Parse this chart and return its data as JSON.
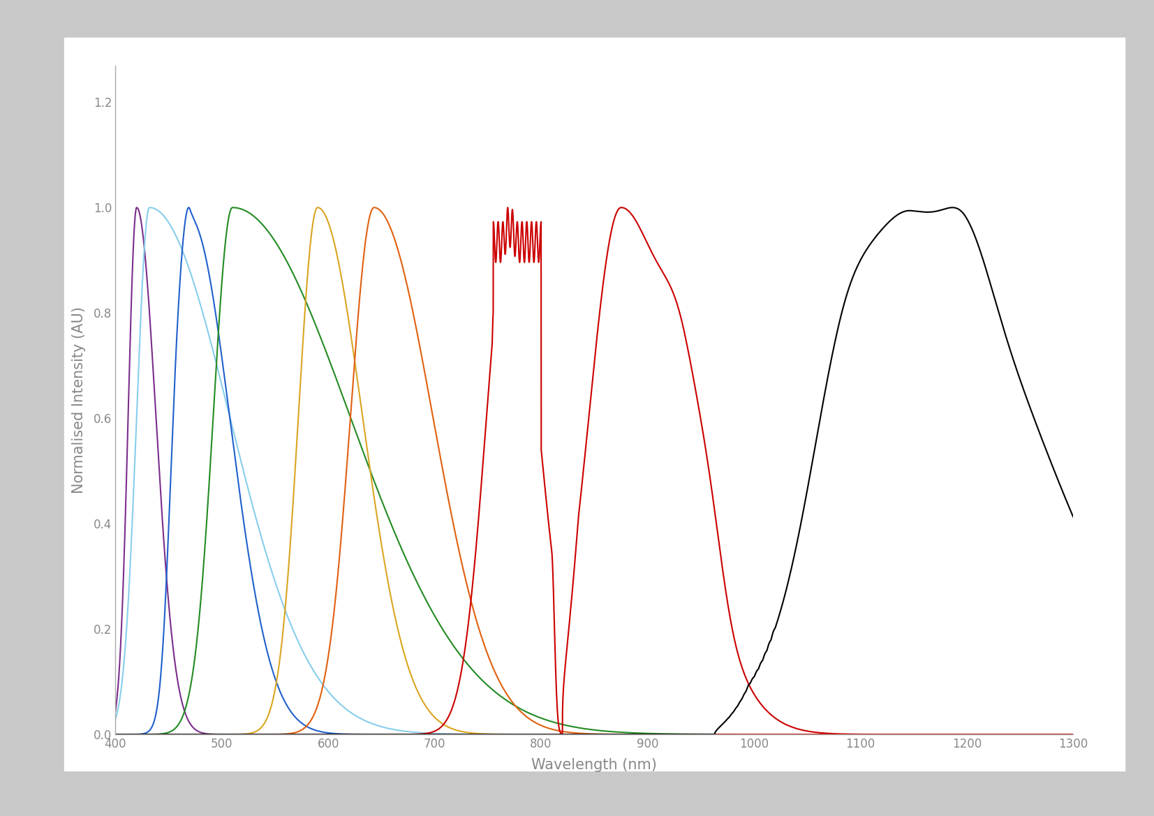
{
  "xlabel": "Wavelength (nm)",
  "ylabel": "Normalised Intensity (AU)",
  "xlim": [
    400,
    1300
  ],
  "ylim": [
    0,
    1.27
  ],
  "yticks": [
    0,
    0.2,
    0.4,
    0.6,
    0.8,
    1.0,
    1.2
  ],
  "xticks": [
    400,
    500,
    600,
    700,
    800,
    900,
    1000,
    1100,
    1200,
    1300
  ],
  "figure_bg": "#d8d8d8",
  "plot_bg": "#ffffff",
  "linewidth": 1.5,
  "tick_color": "#888888",
  "label_color": "#888888",
  "spine_color": "#aaaaaa"
}
